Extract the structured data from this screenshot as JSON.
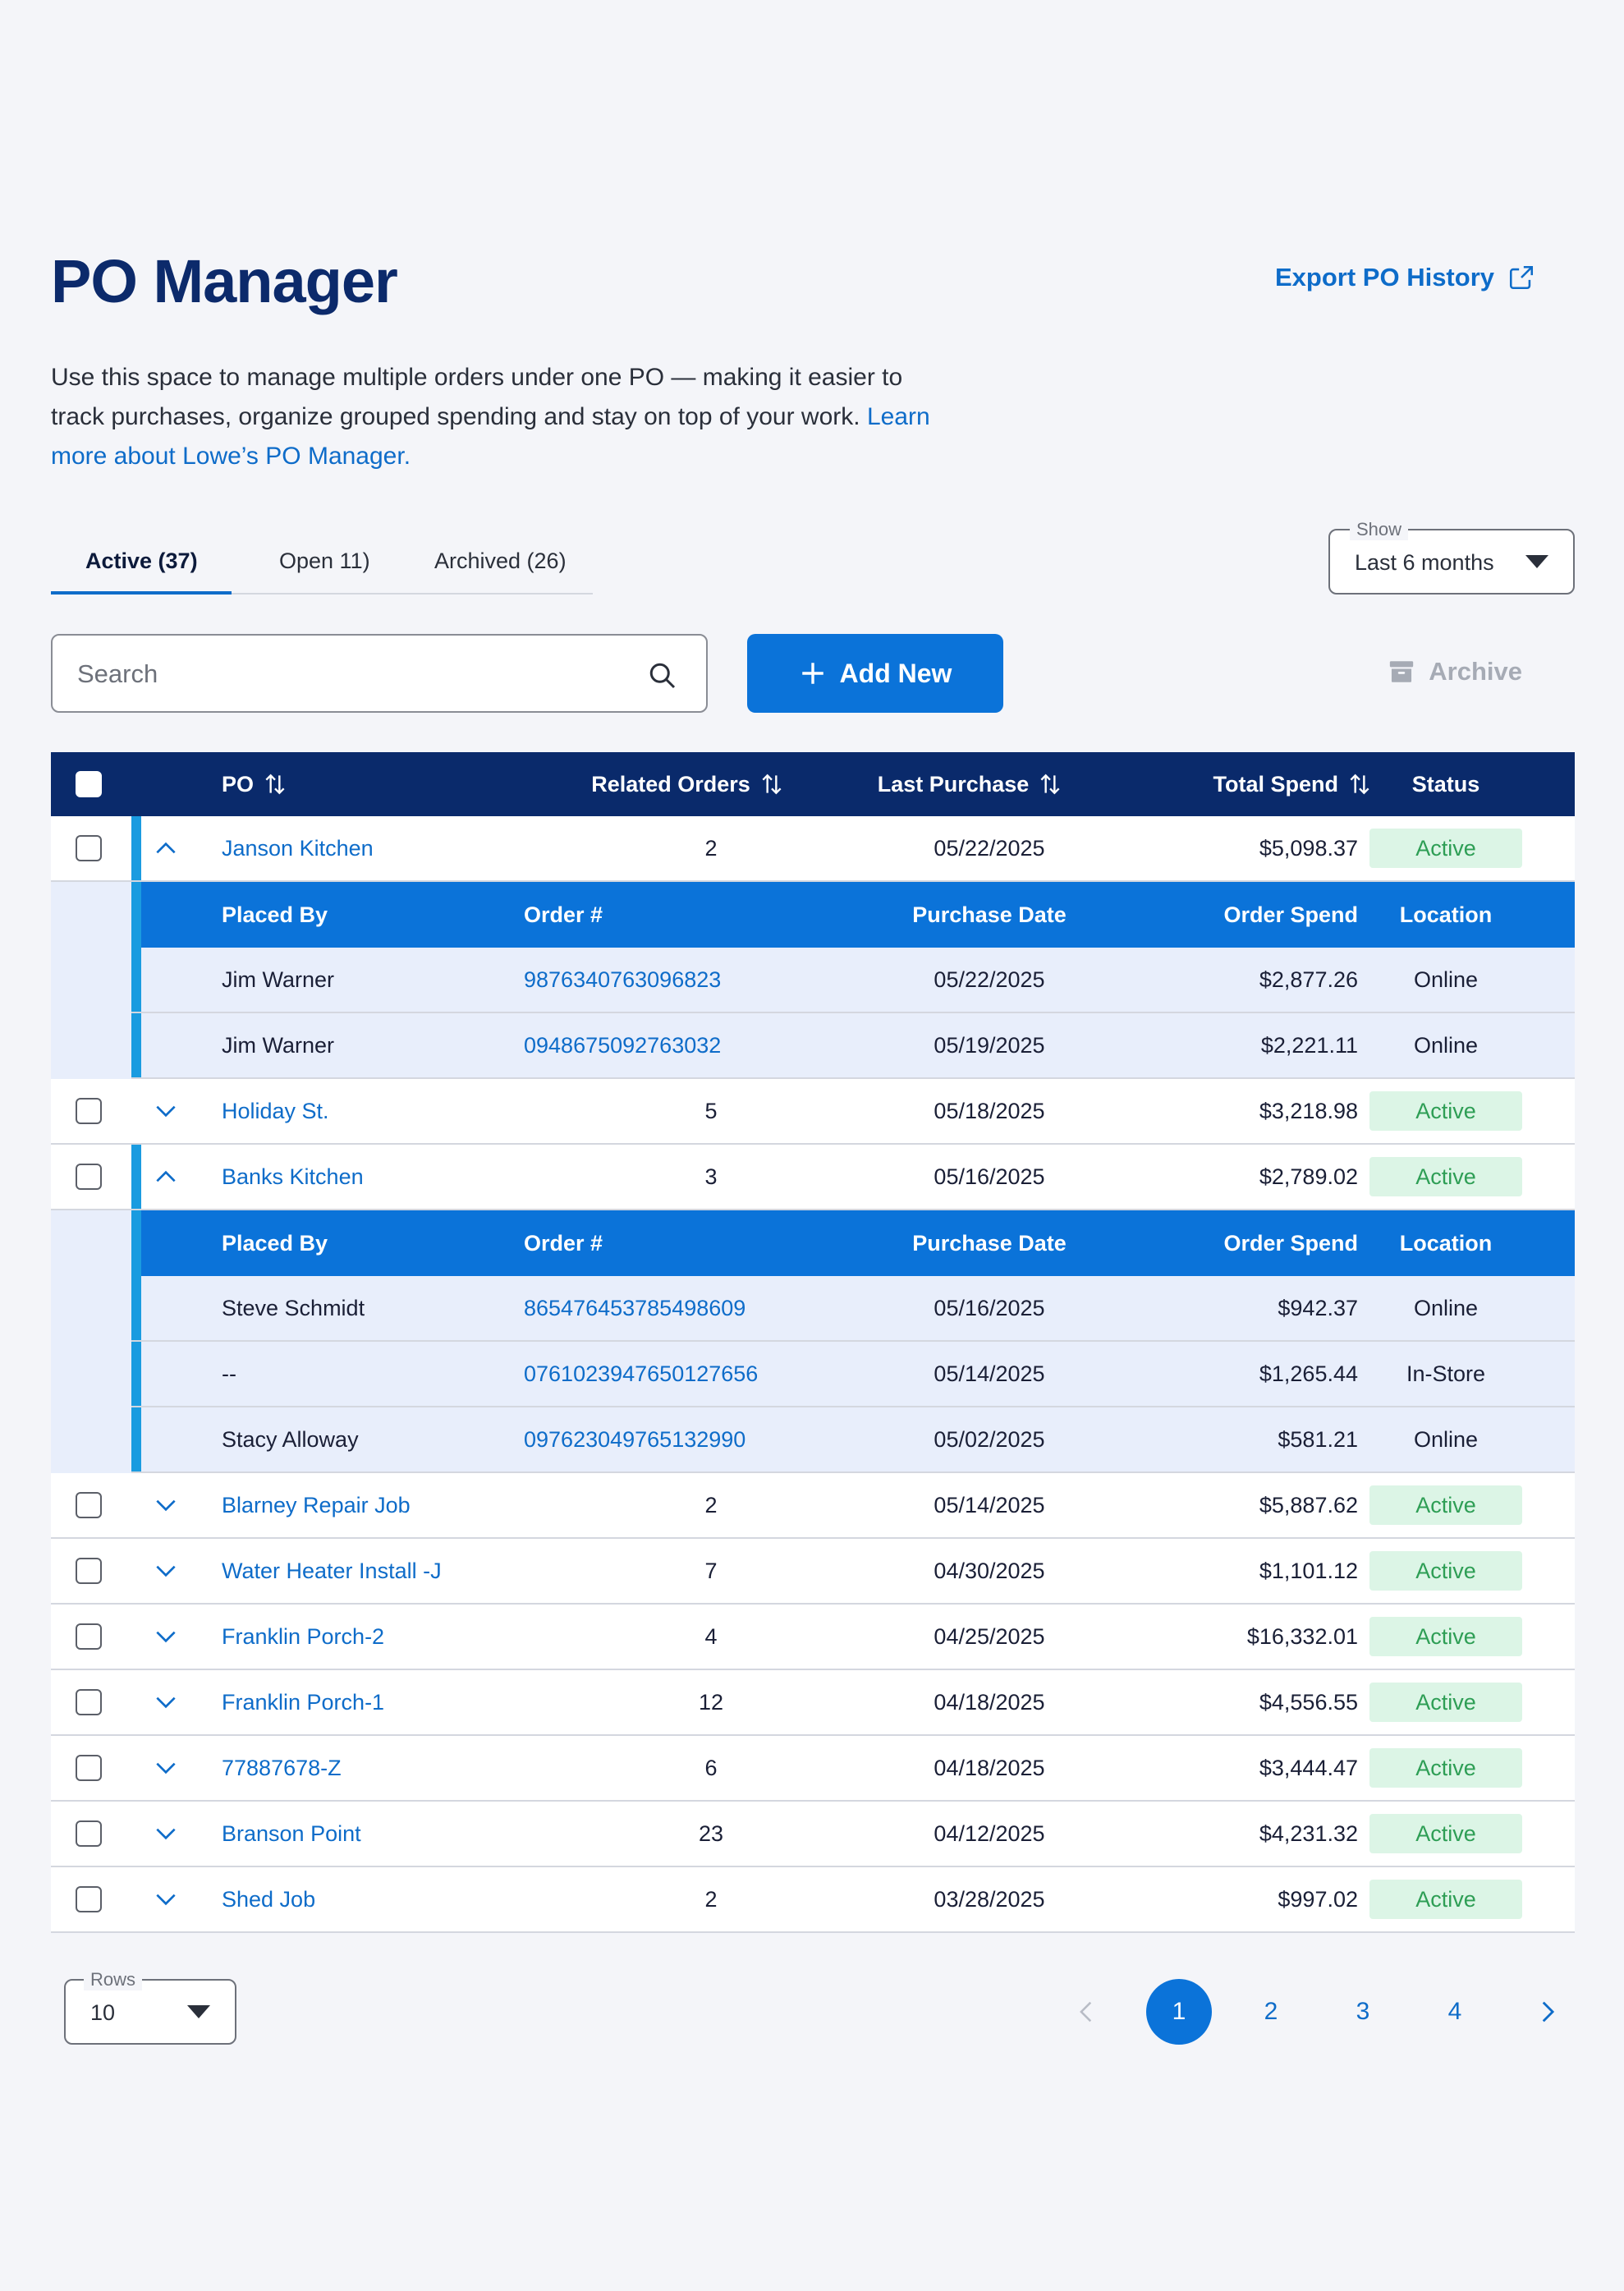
{
  "header": {
    "title": "PO Manager",
    "export_label": "Export PO History"
  },
  "description": {
    "text": "Use this space to manage multiple orders under one PO — making it easier to track purchases, organize grouped spending and stay on top of your work.",
    "link": "Learn more about Lowe’s PO Manager."
  },
  "tabs": [
    {
      "label": "Active (37)"
    },
    {
      "label": "Open 11)"
    },
    {
      "label": "Archived (26)"
    }
  ],
  "show_filter": {
    "label": "Show",
    "value": "Last 6 months"
  },
  "search": {
    "placeholder": "Search"
  },
  "actions": {
    "add_new": "Add New",
    "archive": "Archive"
  },
  "table": {
    "columns": {
      "po": "PO",
      "related": "Related Orders",
      "last": "Last Purchase",
      "total": "Total Spend",
      "status": "Status"
    },
    "sub_columns": {
      "placed_by": "Placed By",
      "order": "Order #",
      "date": "Purchase Date",
      "spend": "Order Spend",
      "location": "Location"
    },
    "rows": [
      {
        "po": "Janson Kitchen",
        "related": "2",
        "last": "05/22/2025",
        "total": "$5,098.37",
        "status": "Active",
        "expanded": true,
        "orders": [
          {
            "by": "Jim Warner",
            "order": "9876340763096823",
            "date": "05/22/2025",
            "spend": "$2,877.26",
            "location": "Online"
          },
          {
            "by": "Jim Warner",
            "order": "0948675092763032",
            "date": "05/19/2025",
            "spend": "$2,221.11",
            "location": "Online"
          }
        ]
      },
      {
        "po": "Holiday St.",
        "related": "5",
        "last": "05/18/2025",
        "total": "$3,218.98",
        "status": "Active",
        "expanded": false
      },
      {
        "po": "Banks Kitchen",
        "related": "3",
        "last": "05/16/2025",
        "total": "$2,789.02",
        "status": "Active",
        "expanded": true,
        "orders": [
          {
            "by": "Steve Schmidt",
            "order": "865476453785498609",
            "date": "05/16/2025",
            "spend": "$942.37",
            "location": "Online"
          },
          {
            "by": "--",
            "order": "0761023947650127656",
            "date": "05/14/2025",
            "spend": "$1,265.44",
            "location": "In-Store"
          },
          {
            "by": "Stacy Alloway",
            "order": "097623049765132990",
            "date": "05/02/2025",
            "spend": "$581.21",
            "location": "Online"
          }
        ]
      },
      {
        "po": "Blarney Repair Job",
        "related": "2",
        "last": "05/14/2025",
        "total": "$5,887.62",
        "status": "Active",
        "expanded": false
      },
      {
        "po": "Water Heater Install -J",
        "related": "7",
        "last": "04/30/2025",
        "total": "$1,101.12",
        "status": "Active",
        "expanded": false
      },
      {
        "po": "Franklin Porch-2",
        "related": "4",
        "last": "04/25/2025",
        "total": "$16,332.01",
        "status": "Active",
        "expanded": false
      },
      {
        "po": "Franklin Porch-1",
        "related": "12",
        "last": "04/18/2025",
        "total": "$4,556.55",
        "status": "Active",
        "expanded": false
      },
      {
        "po": "77887678-Z",
        "related": "6",
        "last": "04/18/2025",
        "total": "$3,444.47",
        "status": "Active",
        "expanded": false
      },
      {
        "po": "Branson Point",
        "related": "23",
        "last": "04/12/2025",
        "total": "$4,231.32",
        "status": "Active",
        "expanded": false
      },
      {
        "po": "Shed Job",
        "related": "2",
        "last": "03/28/2025",
        "total": "$997.02",
        "status": "Active",
        "expanded": false
      }
    ]
  },
  "rows_per_page": {
    "label": "Rows",
    "value": "10"
  },
  "pagination": {
    "pages": [
      "1",
      "2",
      "3",
      "4"
    ],
    "current": "1"
  },
  "colors": {
    "navy": "#0a2a6b",
    "primary": "#0b73d9",
    "accent": "#1a9be0",
    "active_bg": "#dcf5e6",
    "active_text": "#2e9e55"
  }
}
